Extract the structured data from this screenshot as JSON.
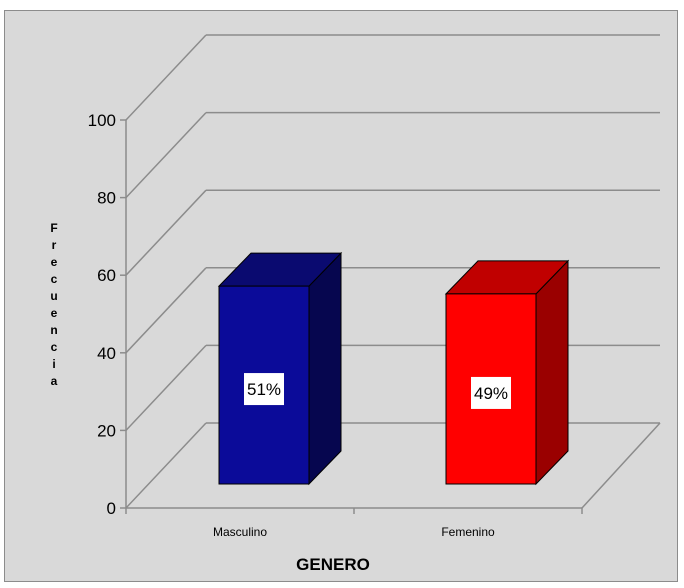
{
  "chart_data": {
    "type": "bar",
    "categories": [
      "Masculino",
      "Femenino"
    ],
    "values": [
      51,
      49
    ],
    "data_labels": [
      "51%",
      "49%"
    ],
    "xlabel": "GENERO",
    "ylabel": "Frecuencia",
    "ylim": [
      0,
      100
    ],
    "yticks": [
      0,
      20,
      40,
      60,
      80,
      100
    ],
    "grid": true,
    "three_d": true,
    "colors": {
      "Masculino": {
        "front": "#0b0b99",
        "top": "#0a0a70",
        "side": "#06064f"
      },
      "Femenino": {
        "front": "#ff0000",
        "top": "#c00000",
        "side": "#9a0000"
      },
      "wall": "#d9d9d9",
      "grid": "#8c8c8c"
    }
  }
}
